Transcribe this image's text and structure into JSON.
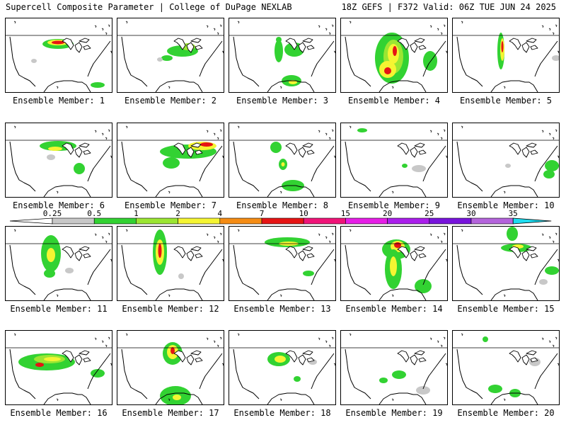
{
  "header": {
    "title_left": "Supercell Composite Parameter | College of DuPage NEXLAB",
    "title_right": "18Z GEFS | F372 Valid: 06Z TUE JUN 24 2025"
  },
  "colorbar": {
    "ticks": [
      "0.25",
      "0.5",
      "1",
      "2",
      "4",
      "7",
      "10",
      "15",
      "20",
      "25",
      "30",
      "35"
    ],
    "colors": [
      "#c8c8c8",
      "#32d232",
      "#9be632",
      "#f5f532",
      "#f58c14",
      "#e61414",
      "#f01478",
      "#e61ee6",
      "#aa1eeb",
      "#7814dc",
      "#b464dc",
      "#1edcf0"
    ],
    "low_arrow_color": "#ffffff",
    "high_arrow_color": "#1edcf0"
  },
  "panels": [
    {
      "label": "Ensemble Member: 1"
    },
    {
      "label": "Ensemble Member: 2"
    },
    {
      "label": "Ensemble Member: 3"
    },
    {
      "label": "Ensemble Member: 4"
    },
    {
      "label": "Ensemble Member: 5"
    },
    {
      "label": "Ensemble Member: 6"
    },
    {
      "label": "Ensemble Member: 7"
    },
    {
      "label": "Ensemble Member: 8"
    },
    {
      "label": "Ensemble Member: 9"
    },
    {
      "label": "Ensemble Member: 10"
    },
    {
      "label": "Ensemble Member: 11"
    },
    {
      "label": "Ensemble Member: 12"
    },
    {
      "label": "Ensemble Member: 13"
    },
    {
      "label": "Ensemble Member: 14"
    },
    {
      "label": "Ensemble Member: 15"
    },
    {
      "label": "Ensemble Member: 16"
    },
    {
      "label": "Ensemble Member: 17"
    },
    {
      "label": "Ensemble Member: 18"
    },
    {
      "label": "Ensemble Member: 19"
    },
    {
      "label": "Ensemble Member: 20"
    }
  ]
}
